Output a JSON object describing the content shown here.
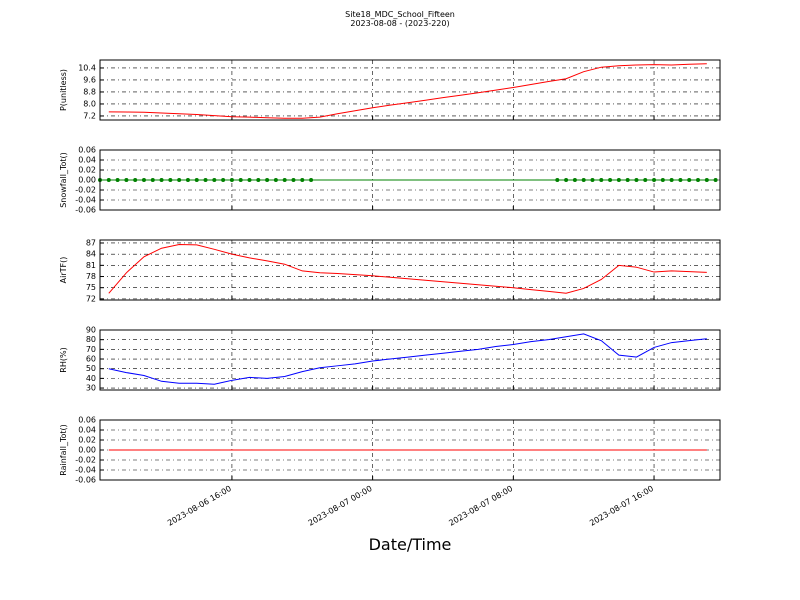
{
  "title": "Site18_MDC_School_Fifteen",
  "subtitle": "2023-08-08 - (2023-220)",
  "xlabel": "Date/Time",
  "chart_data": [
    {
      "type": "line",
      "ylabel": "P(unitless)",
      "grid": true,
      "xlim": [
        "2023-08-06 08:30",
        "2023-08-07 19:45"
      ],
      "xticks": [
        "2023-08-06 16:00",
        "2023-08-07 00:00",
        "2023-08-07 08:00",
        "2023-08-07 16:00"
      ],
      "ylim": [
        6.93,
        10.93
      ],
      "yticks": [
        7.2,
        {
          "value": 8,
          "label": "8.0"
        },
        8.8,
        9.6,
        10.4
      ],
      "x": [
        "2023-08-06 09:00",
        "2023-08-06 10:00",
        "2023-08-06 11:00",
        "2023-08-06 12:00",
        "2023-08-06 13:00",
        "2023-08-06 14:00",
        "2023-08-06 15:00",
        "2023-08-06 16:00",
        "2023-08-06 17:00",
        "2023-08-06 18:00",
        "2023-08-06 19:00",
        "2023-08-06 20:00",
        "2023-08-06 21:00",
        "2023-08-06 22:00",
        "2023-08-06 23:00",
        "2023-08-07 00:00",
        "2023-08-07 01:00",
        "2023-08-07 02:00",
        "2023-08-07 03:00",
        "2023-08-07 04:00",
        "2023-08-07 05:00",
        "2023-08-07 06:00",
        "2023-08-07 07:00",
        "2023-08-07 08:00",
        "2023-08-07 09:00",
        "2023-08-07 10:00",
        "2023-08-07 11:00",
        "2023-08-07 12:00",
        "2023-08-07 13:00",
        "2023-08-07 14:00",
        "2023-08-07 15:00",
        "2023-08-07 16:00",
        "2023-08-07 17:00",
        "2023-08-07 18:00",
        "2023-08-07 19:00"
      ],
      "series": [
        {
          "color": "#ff0000",
          "values": [
            7.47,
            7.46,
            7.45,
            7.4,
            7.35,
            7.3,
            7.22,
            7.15,
            7.12,
            7.08,
            7.05,
            7.05,
            7.12,
            7.35,
            7.55,
            7.75,
            7.92,
            8.08,
            8.25,
            8.42,
            8.58,
            8.75,
            8.92,
            9.1,
            9.3,
            9.5,
            9.68,
            10.15,
            10.45,
            10.55,
            10.6,
            10.62,
            10.6,
            10.65,
            10.68
          ]
        }
      ]
    },
    {
      "type": "line",
      "ylabel": "Snowfall_Tot()",
      "grid": true,
      "markers": true,
      "xlim": [
        "2023-08-06 08:30",
        "2023-08-07 19:45"
      ],
      "xticks": [
        "2023-08-06 16:00",
        "2023-08-07 00:00",
        "2023-08-07 08:00",
        "2023-08-07 16:00"
      ],
      "ylim": [
        -0.06,
        0.06
      ],
      "yticks": [
        -0.06,
        -0.04,
        -0.02,
        {
          "value": 0,
          "label": "0.00"
        },
        0.02,
        0.04,
        0.06
      ],
      "x": [
        "2023-08-06 08:30",
        "2023-08-06 09:00",
        "2023-08-06 09:30",
        "2023-08-06 10:00",
        "2023-08-06 10:30",
        "2023-08-06 11:00",
        "2023-08-06 11:30",
        "2023-08-06 12:00",
        "2023-08-06 12:30",
        "2023-08-06 13:00",
        "2023-08-06 13:30",
        "2023-08-06 14:00",
        "2023-08-06 14:30",
        "2023-08-06 15:00",
        "2023-08-06 15:30",
        "2023-08-06 16:00",
        "2023-08-06 16:30",
        "2023-08-06 17:00",
        "2023-08-06 17:30",
        "2023-08-06 18:00",
        "2023-08-06 18:30",
        "2023-08-06 19:00",
        "2023-08-06 19:30",
        "2023-08-06 20:00",
        "2023-08-06 20:30",
        "2023-08-07 10:30",
        "2023-08-07 11:00",
        "2023-08-07 11:30",
        "2023-08-07 12:00",
        "2023-08-07 12:30",
        "2023-08-07 13:00",
        "2023-08-07 13:30",
        "2023-08-07 14:00",
        "2023-08-07 14:30",
        "2023-08-07 15:00",
        "2023-08-07 15:30",
        "2023-08-07 16:00",
        "2023-08-07 16:30",
        "2023-08-07 17:00",
        "2023-08-07 17:30",
        "2023-08-07 18:00",
        "2023-08-07 18:30",
        "2023-08-07 19:00",
        "2023-08-07 19:30"
      ],
      "series": [
        {
          "color": "#008000",
          "values": [
            0,
            0,
            0,
            0,
            0,
            0,
            0,
            0,
            0,
            0,
            0,
            0,
            0,
            0,
            0,
            0,
            0,
            0,
            0,
            0,
            0,
            0,
            0,
            0,
            0,
            0,
            0,
            0,
            0,
            0,
            0,
            0,
            0,
            0,
            0,
            0,
            0,
            0,
            0,
            0,
            0,
            0,
            0,
            0
          ]
        }
      ]
    },
    {
      "type": "line",
      "ylabel": "AirTF()",
      "grid": true,
      "xlim": [
        "2023-08-06 08:30",
        "2023-08-07 19:45"
      ],
      "xticks": [
        "2023-08-06 16:00",
        "2023-08-07 00:00",
        "2023-08-07 08:00",
        "2023-08-07 16:00"
      ],
      "ylim": [
        71.7,
        87.8
      ],
      "yticks": [
        72,
        75,
        78,
        81,
        84,
        87
      ],
      "x": [
        "2023-08-06 09:00",
        "2023-08-06 10:00",
        "2023-08-06 11:00",
        "2023-08-06 12:00",
        "2023-08-06 13:00",
        "2023-08-06 14:00",
        "2023-08-06 15:00",
        "2023-08-06 16:00",
        "2023-08-06 17:00",
        "2023-08-06 18:00",
        "2023-08-06 19:00",
        "2023-08-06 20:00",
        "2023-08-06 21:00",
        "2023-08-06 22:00",
        "2023-08-06 23:00",
        "2023-08-07 00:00",
        "2023-08-07 01:00",
        "2023-08-07 02:00",
        "2023-08-07 03:00",
        "2023-08-07 04:00",
        "2023-08-07 05:00",
        "2023-08-07 06:00",
        "2023-08-07 07:00",
        "2023-08-07 08:00",
        "2023-08-07 09:00",
        "2023-08-07 10:00",
        "2023-08-07 11:00",
        "2023-08-07 12:00",
        "2023-08-07 13:00",
        "2023-08-07 14:00",
        "2023-08-07 15:00",
        "2023-08-07 16:00",
        "2023-08-07 17:00",
        "2023-08-07 18:00",
        "2023-08-07 19:00"
      ],
      "series": [
        {
          "color": "#ff0000",
          "values": [
            73.5,
            79,
            83.3,
            85.6,
            86.6,
            86.5,
            85.3,
            84,
            83,
            82.2,
            81.3,
            79.5,
            79,
            78.8,
            78.5,
            78.2,
            77.8,
            77.4,
            77,
            76.6,
            76.2,
            75.8,
            75.4,
            75,
            74.5,
            74,
            73.5,
            74.8,
            77.2,
            81,
            80.5,
            79.2,
            79.5,
            79.3,
            79.1
          ]
        }
      ]
    },
    {
      "type": "line",
      "ylabel": "RH(%)",
      "grid": true,
      "xlim": [
        "2023-08-06 08:30",
        "2023-08-07 19:45"
      ],
      "xticks": [
        "2023-08-06 16:00",
        "2023-08-07 00:00",
        "2023-08-07 08:00",
        "2023-08-07 16:00"
      ],
      "ylim": [
        28,
        90
      ],
      "yticks": [
        30,
        40,
        50,
        60,
        70,
        80,
        90
      ],
      "x": [
        "2023-08-06 09:00",
        "2023-08-06 10:00",
        "2023-08-06 11:00",
        "2023-08-06 12:00",
        "2023-08-06 13:00",
        "2023-08-06 14:00",
        "2023-08-06 15:00",
        "2023-08-06 16:00",
        "2023-08-06 17:00",
        "2023-08-06 18:00",
        "2023-08-06 19:00",
        "2023-08-06 20:00",
        "2023-08-06 21:00",
        "2023-08-06 22:00",
        "2023-08-06 23:00",
        "2023-08-07 00:00",
        "2023-08-07 01:00",
        "2023-08-07 02:00",
        "2023-08-07 03:00",
        "2023-08-07 04:00",
        "2023-08-07 05:00",
        "2023-08-07 06:00",
        "2023-08-07 07:00",
        "2023-08-07 08:00",
        "2023-08-07 09:00",
        "2023-08-07 10:00",
        "2023-08-07 11:00",
        "2023-08-07 12:00",
        "2023-08-07 13:00",
        "2023-08-07 14:00",
        "2023-08-07 15:00",
        "2023-08-07 16:00",
        "2023-08-07 17:00",
        "2023-08-07 18:00",
        "2023-08-07 19:00"
      ],
      "series": [
        {
          "color": "#0000ff",
          "values": [
            50,
            46,
            43,
            37,
            35,
            35,
            34,
            38,
            41,
            40,
            42,
            47,
            51,
            53,
            55,
            58,
            60,
            62,
            64,
            66,
            68,
            70,
            73,
            75,
            78,
            80,
            83,
            86,
            79,
            64,
            62,
            72,
            77,
            79,
            81
          ]
        }
      ]
    },
    {
      "type": "line",
      "ylabel": "Rainfall_Tot()",
      "grid": true,
      "xlim": [
        "2023-08-06 08:30",
        "2023-08-07 19:45"
      ],
      "xticks": [
        "2023-08-06 16:00",
        "2023-08-07 00:00",
        "2023-08-07 08:00",
        "2023-08-07 16:00"
      ],
      "ylim": [
        -0.06,
        0.06
      ],
      "yticks": [
        -0.06,
        -0.04,
        -0.02,
        {
          "value": 0,
          "label": "0.00"
        },
        0.02,
        0.04,
        0.06
      ],
      "x": [
        "2023-08-06 09:00",
        "2023-08-06 12:00",
        "2023-08-06 16:00",
        "2023-08-06 20:00",
        "2023-08-07 00:00",
        "2023-08-07 04:00",
        "2023-08-07 08:00",
        "2023-08-07 12:00",
        "2023-08-07 16:00",
        "2023-08-07 19:00"
      ],
      "series": [
        {
          "color": "#ff0000",
          "values": [
            0,
            0,
            0,
            0,
            0,
            0,
            0,
            0,
            0,
            0
          ]
        }
      ]
    }
  ]
}
